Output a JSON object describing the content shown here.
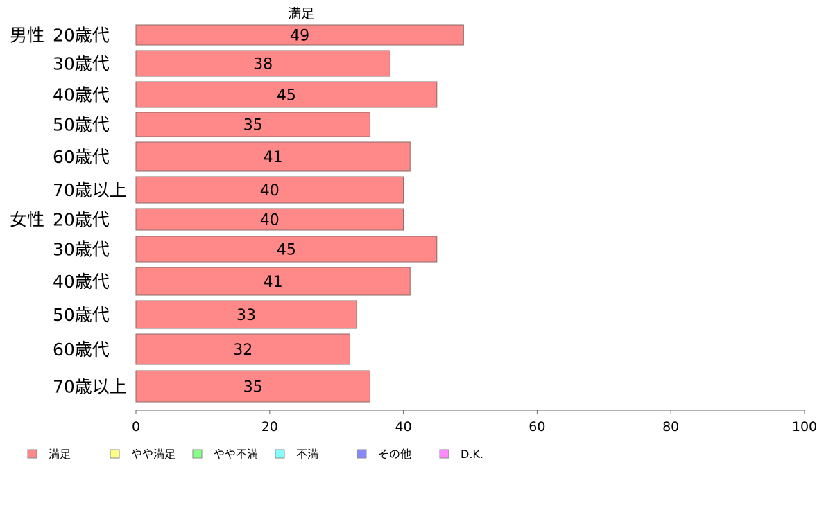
{
  "chart_data": {
    "type": "bar",
    "orientation": "horizontal",
    "stacked": true,
    "title": "満足",
    "groups": [
      {
        "label": "男性",
        "categories": [
          "20歳代",
          "30歳代",
          "40歳代",
          "50歳代",
          "60歳代",
          "70歳以上"
        ],
        "values": [
          49,
          38,
          45,
          35,
          41,
          40
        ]
      },
      {
        "label": "女性",
        "categories": [
          "20歳代",
          "30歳代",
          "40歳代",
          "50歳代",
          "60歳代",
          "70歳以上"
        ],
        "values": [
          40,
          45,
          41,
          33,
          32,
          35
        ]
      }
    ],
    "series": [
      {
        "name": "満足",
        "color": "#ff8888"
      },
      {
        "name": "やや満足",
        "color": "#ffff88"
      },
      {
        "name": "やや不満",
        "color": "#88ff88"
      },
      {
        "name": "不満",
        "color": "#88ffff"
      },
      {
        "name": "その他",
        "color": "#8888ff"
      },
      {
        "name": "D.K.",
        "color": "#ff88ff"
      }
    ],
    "xlim": [
      0,
      100
    ],
    "xticks": [
      0,
      20,
      40,
      60,
      80,
      100
    ],
    "grid": false,
    "legend_position": "bottom"
  }
}
